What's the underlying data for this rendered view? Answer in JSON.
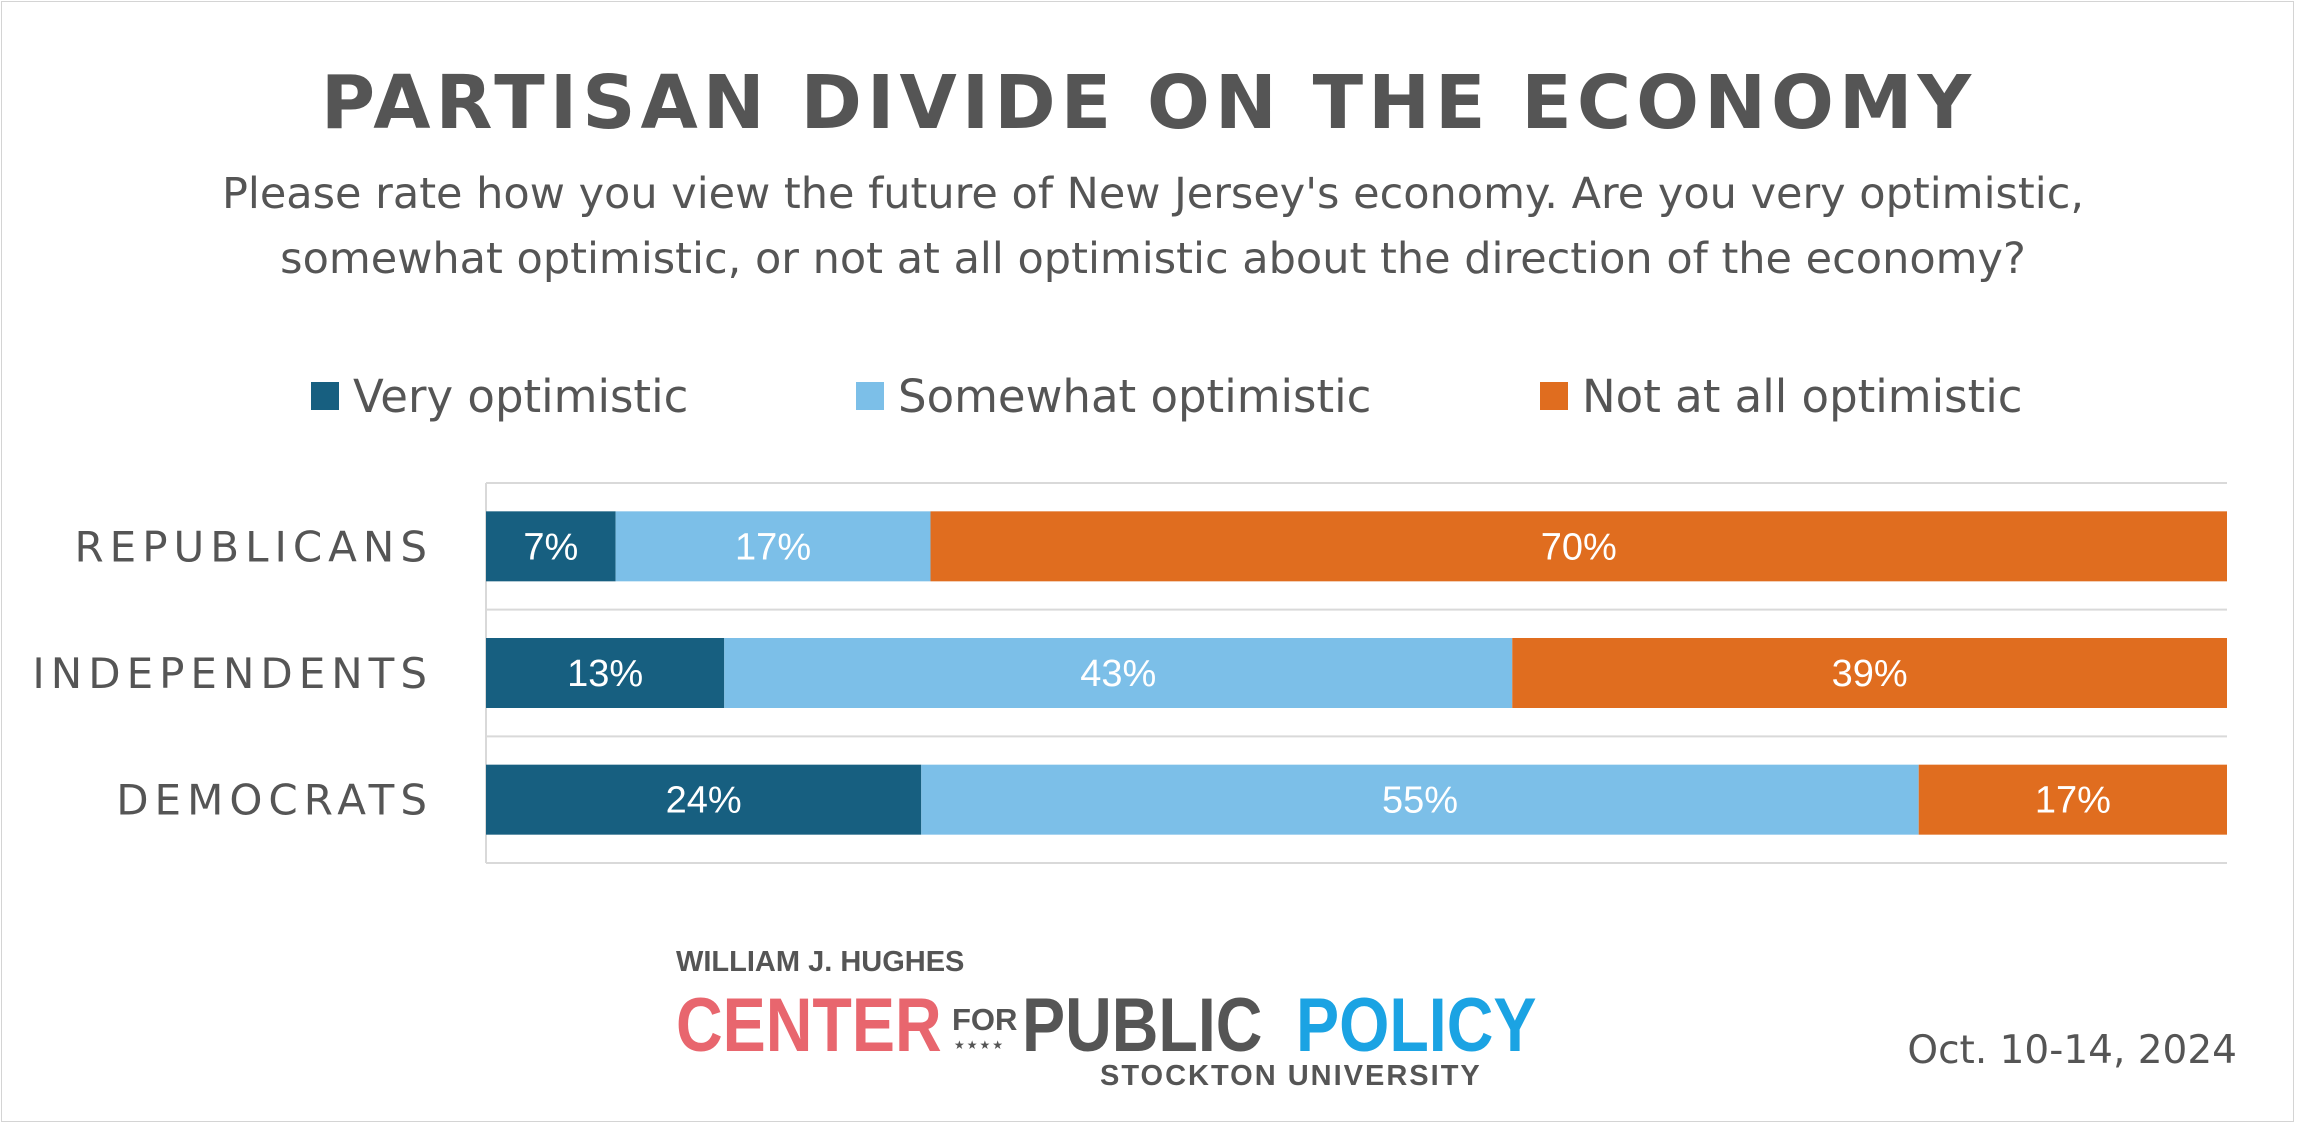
{
  "chart_data": {
    "type": "bar",
    "orientation": "horizontal",
    "stacked": true,
    "title": "PARTISAN DIVIDE ON THE ECONOMY",
    "subtitle_lines": [
      "Please rate how you view the future of New Jersey's economy. Are you very optimistic,",
      "somewhat optimistic, or not at all optimistic about the direction of the economy?"
    ],
    "categories": [
      "REPUBLICANS",
      "INDEPENDENTS",
      "DEMOCRATS"
    ],
    "series": [
      {
        "name": "Very optimistic",
        "color": "#175f80",
        "values": [
          7,
          13,
          24
        ],
        "labels": [
          "7%",
          "13%",
          "24%"
        ]
      },
      {
        "name": "Somewhat optimistic",
        "color": "#7cbfe8",
        "values": [
          17,
          43,
          55
        ],
        "labels": [
          "17%",
          "43%",
          "55%"
        ]
      },
      {
        "name": "Not at all optimistic",
        "color": "#e06d1f",
        "values": [
          70,
          39,
          17
        ],
        "labels": [
          "70%",
          "39%",
          "17%"
        ]
      }
    ],
    "legend_position": "top",
    "grid": true,
    "label_color": "#ffffff",
    "text_color": "#555555"
  },
  "footer": {
    "date": "Oct. 10-14, 2024",
    "logo": {
      "top": "WILLIAM J. HUGHES",
      "center": "CENTER",
      "for": "FOR",
      "stars": "★★★★",
      "public": "PUBLIC",
      "policy": "POLICY",
      "university": "STOCKTON UNIVERSITY"
    }
  }
}
